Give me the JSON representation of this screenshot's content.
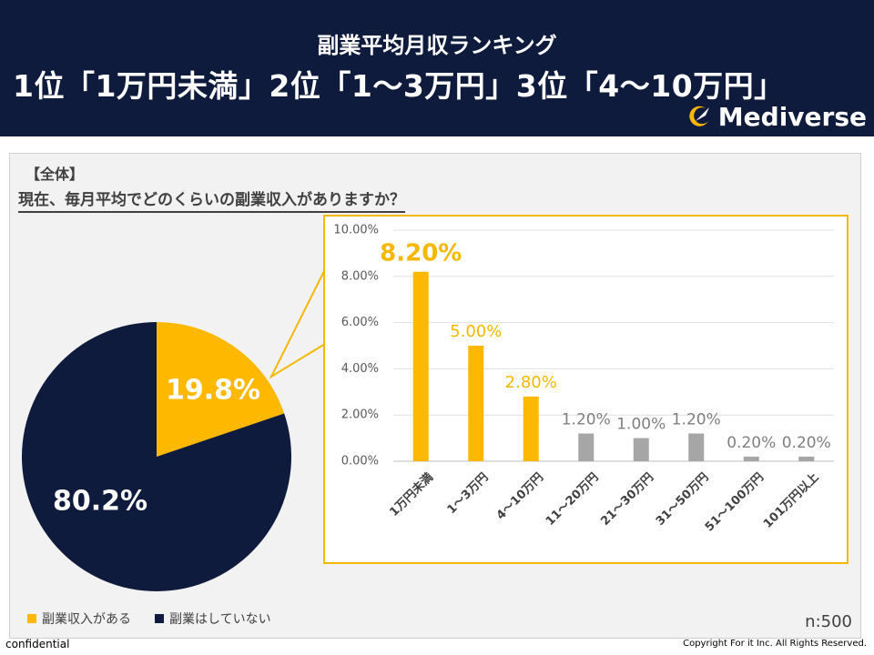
{
  "header": {
    "subtitle": "副業平均月収ランキング",
    "headline": "1位「1万円未満」2位「1～3万円」3位「4～10万円」",
    "logo_text": "Mediverse"
  },
  "panel": {
    "section_label": "【全体】",
    "question": "現在、毎月平均でどのくらいの副業収入がありますか？",
    "sample_size": "n:500"
  },
  "colors": {
    "navy": "#0f1b3d",
    "gold": "#ffb800",
    "gray": "#a6a6a6"
  },
  "chart_data": [
    {
      "type": "pie",
      "categories": [
        "副業収入がある",
        "副業はしていない"
      ],
      "values": [
        19.8,
        80.2
      ],
      "labels": [
        "19.8%",
        "80.2%"
      ],
      "legend": [
        "副業収入がある",
        "副業はしていない"
      ]
    },
    {
      "type": "bar",
      "categories": [
        "1万円未満",
        "1～3万円",
        "4～10万円",
        "11～20万円",
        "21～30万円",
        "31～50万円",
        "51～100万円",
        "101万円以上"
      ],
      "values": [
        8.2,
        5.0,
        2.8,
        1.2,
        1.0,
        1.2,
        0.2,
        0.2
      ],
      "labels": [
        "8.20%",
        "5.00%",
        "2.80%",
        "1.20%",
        "1.00%",
        "1.20%",
        "0.20%",
        "0.20%"
      ],
      "ylim": [
        0,
        10
      ],
      "yticks": [
        "0.00%",
        "2.00%",
        "4.00%",
        "6.00%",
        "8.00%",
        "10.00%"
      ],
      "highlight_count": 3
    }
  ],
  "footer": {
    "left": "confidential",
    "right": "Copyright For it Inc. All Rights Reserved."
  }
}
